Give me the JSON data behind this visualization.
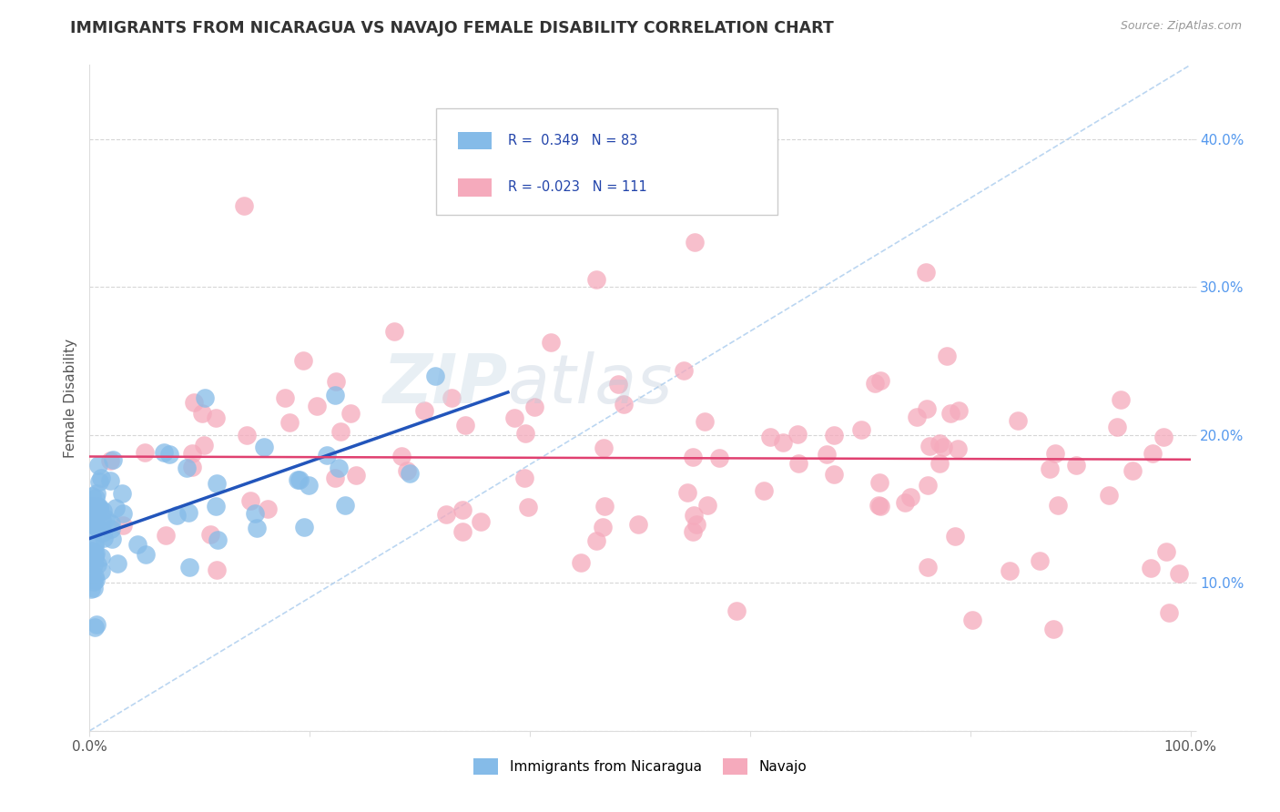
{
  "title": "IMMIGRANTS FROM NICARAGUA VS NAVAJO FEMALE DISABILITY CORRELATION CHART",
  "source": "Source: ZipAtlas.com",
  "ylabel": "Female Disability",
  "r_nicaragua": 0.349,
  "n_nicaragua": 83,
  "r_navajo": -0.023,
  "n_navajo": 111,
  "xlim": [
    0,
    1.0
  ],
  "ylim": [
    0,
    0.45
  ],
  "color_nicaragua": "#85BBE8",
  "color_navajo": "#F5AABC",
  "trendline_nicaragua": "#2255BB",
  "trendline_navajo": "#E04070",
  "background_color": "#FFFFFF",
  "grid_color": "#CCCCCC",
  "watermark_zip": "ZIP",
  "watermark_atlas": "atlas",
  "legend_box_color": "#FFFFFF",
  "legend_border_color": "#CCCCCC",
  "title_color": "#333333",
  "source_color": "#999999",
  "axis_label_color": "#555555",
  "ytick_color": "#5599EE",
  "diag_color": "#AACCEE"
}
